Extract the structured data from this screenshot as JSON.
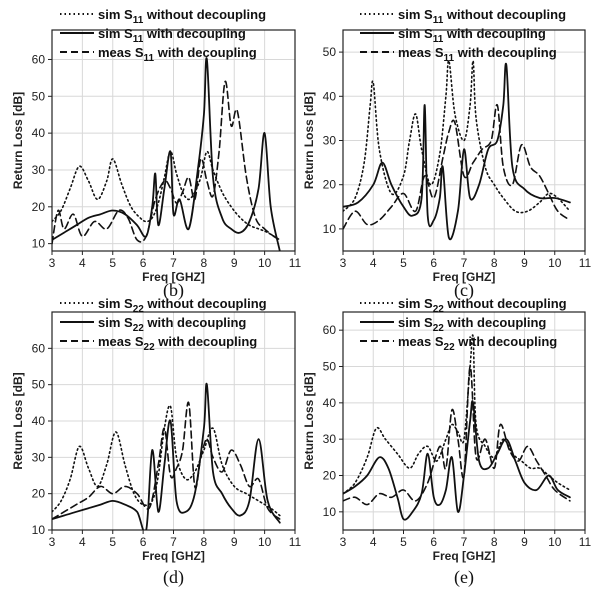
{
  "figure_title": "",
  "chart_data": [
    {
      "type": "line",
      "caption": "(b)",
      "xlabel": "Freq [GHZ]",
      "ylabel": "Return Loss [dB]",
      "xlim": [
        3,
        11
      ],
      "ylim": [
        8,
        68
      ],
      "xticks": [
        3,
        4,
        5,
        6,
        7,
        8,
        9,
        10,
        11
      ],
      "yticks": [
        10,
        20,
        30,
        40,
        50,
        60
      ],
      "legend_position": "top",
      "series": [
        {
          "name": "sim S11 without decoupling",
          "label_base": "sim S",
          "label_sub": "11",
          "label_rest": " without decoupling",
          "style": "dotted",
          "x": [
            3.0,
            3.3,
            3.6,
            3.9,
            4.2,
            4.5,
            4.8,
            5.0,
            5.3,
            5.6,
            5.9,
            6.1,
            6.3,
            6.5,
            6.7,
            6.9,
            7.1,
            7.3,
            7.5,
            7.7,
            7.9,
            8.1,
            8.3,
            8.6,
            8.9,
            9.2,
            9.5,
            9.8,
            10.1,
            10.5
          ],
          "y": [
            16,
            19,
            25,
            31,
            27,
            22,
            27,
            33,
            26,
            20,
            17,
            16,
            17,
            21,
            28,
            35,
            29,
            24,
            22,
            24,
            28,
            35,
            30,
            24,
            20,
            17,
            15,
            14,
            13,
            11
          ]
        },
        {
          "name": "sim S11 with decoupling",
          "label_base": "sim S",
          "label_sub": "11",
          "label_rest": " with decoupling",
          "style": "solid",
          "x": [
            3.0,
            3.4,
            3.8,
            4.2,
            4.6,
            5.0,
            5.4,
            5.8,
            6.1,
            6.3,
            6.4,
            6.5,
            6.7,
            6.9,
            7.0,
            7.2,
            7.5,
            7.8,
            8.0,
            8.1,
            8.3,
            8.6,
            8.9,
            9.2,
            9.5,
            9.8,
            10.0,
            10.2,
            10.5
          ],
          "y": [
            11,
            13,
            15,
            17,
            18,
            19,
            18,
            15,
            12,
            20,
            29,
            15,
            25,
            35,
            18,
            22,
            14,
            30,
            45,
            60,
            28,
            17,
            14,
            13,
            16,
            25,
            40,
            20,
            8
          ]
        },
        {
          "name": "meas S11 with decoupling",
          "label_base": "meas S",
          "label_sub": "11",
          "label_rest": " with decoupling",
          "style": "dashed",
          "x": [
            3.0,
            3.2,
            3.4,
            3.7,
            4.0,
            4.4,
            4.8,
            5.2,
            5.5,
            5.8,
            6.1,
            6.4,
            6.7,
            6.9,
            7.1,
            7.3,
            7.5,
            7.7,
            7.9,
            8.1,
            8.3,
            8.5,
            8.7,
            8.9,
            9.1,
            9.4,
            9.7,
            10.0,
            10.3,
            10.5
          ],
          "y": [
            10,
            19,
            14,
            18,
            12,
            16,
            14,
            19,
            17,
            11,
            12,
            22,
            27,
            25,
            21,
            24,
            28,
            22,
            33,
            27,
            23,
            35,
            54,
            42,
            46,
            28,
            17,
            14,
            12,
            11
          ]
        }
      ]
    },
    {
      "type": "line",
      "caption": "(c)",
      "xlabel": "Freq [GHZ]",
      "ylabel": "Return Loss [dB]",
      "xlim": [
        3,
        11
      ],
      "ylim": [
        5,
        55
      ],
      "xticks": [
        3,
        4,
        5,
        6,
        7,
        8,
        9,
        10,
        11
      ],
      "yticks": [
        10,
        20,
        30,
        40,
        50
      ],
      "legend_position": "top",
      "series": [
        {
          "name": "sim S11 without decoupling",
          "label_base": "sim S",
          "label_sub": "11",
          "label_rest": " without decoupling",
          "style": "dotted",
          "x": [
            3.0,
            3.4,
            3.7,
            3.9,
            4.0,
            4.2,
            4.6,
            5.0,
            5.2,
            5.4,
            5.6,
            5.9,
            6.2,
            6.4,
            6.5,
            6.7,
            7.0,
            7.2,
            7.3,
            7.4,
            7.7,
            8.0,
            8.3,
            8.7,
            9.1,
            9.5,
            9.8,
            10.1,
            10.5
          ],
          "y": [
            14,
            17,
            25,
            38,
            43,
            28,
            18,
            22,
            30,
            36,
            28,
            20,
            27,
            40,
            48,
            36,
            30,
            38,
            48,
            35,
            24,
            20,
            17,
            14,
            14,
            16,
            18,
            17,
            14
          ]
        },
        {
          "name": "sim S11 with decoupling",
          "label_base": "sim S",
          "label_sub": "11",
          "label_rest": " with decoupling",
          "style": "solid",
          "x": [
            3.0,
            3.5,
            4.0,
            4.3,
            4.6,
            5.0,
            5.3,
            5.6,
            5.7,
            5.8,
            6.0,
            6.2,
            6.3,
            6.5,
            6.8,
            7.0,
            7.2,
            7.5,
            7.8,
            8.1,
            8.3,
            8.4,
            8.6,
            9.0,
            9.5,
            10.0,
            10.5
          ],
          "y": [
            15,
            16,
            20,
            25,
            20,
            15,
            13,
            17,
            38,
            13,
            12,
            17,
            24,
            8,
            14,
            28,
            17,
            20,
            28,
            30,
            38,
            47,
            24,
            19,
            17,
            17,
            16
          ]
        },
        {
          "name": "meas S11 with decoupling",
          "label_base": "meas S",
          "label_sub": "11",
          "label_rest": " with decoupling",
          "style": "dashed",
          "x": [
            3.0,
            3.4,
            3.8,
            4.2,
            4.6,
            5.0,
            5.4,
            5.7,
            6.0,
            6.3,
            6.5,
            6.7,
            7.0,
            7.3,
            7.6,
            7.9,
            8.1,
            8.3,
            8.6,
            8.9,
            9.2,
            9.5,
            9.8,
            10.1,
            10.5
          ],
          "y": [
            10,
            14,
            11,
            12,
            15,
            18,
            14,
            22,
            17,
            26,
            32,
            34,
            22,
            25,
            28,
            30,
            38,
            24,
            20,
            29,
            24,
            22,
            18,
            14,
            12
          ]
        }
      ]
    },
    {
      "type": "line",
      "caption": "(d)",
      "xlabel": "Freq [GHZ]",
      "ylabel": "Return Loss [dB]",
      "xlim": [
        3,
        11
      ],
      "ylim": [
        10,
        70
      ],
      "xticks": [
        3,
        4,
        5,
        6,
        7,
        8,
        9,
        10,
        11
      ],
      "yticks": [
        10,
        20,
        30,
        40,
        50,
        60
      ],
      "legend_position": "top",
      "series": [
        {
          "name": "sim S22 without decoupling",
          "label_base": "sim S",
          "label_sub": "22",
          "label_rest": " without decoupling",
          "style": "dotted",
          "x": [
            3.0,
            3.3,
            3.6,
            3.9,
            4.2,
            4.5,
            4.8,
            5.1,
            5.4,
            5.7,
            6.0,
            6.3,
            6.5,
            6.7,
            6.9,
            7.1,
            7.4,
            7.7,
            8.0,
            8.3,
            8.6,
            9.0,
            9.4,
            9.8,
            10.2,
            10.5
          ],
          "y": [
            15,
            18,
            24,
            33,
            27,
            22,
            28,
            37,
            28,
            20,
            17,
            18,
            25,
            38,
            44,
            30,
            24,
            26,
            32,
            38,
            28,
            22,
            20,
            18,
            16,
            14
          ]
        },
        {
          "name": "sim S22 with decoupling",
          "label_base": "sim S",
          "label_sub": "22",
          "label_rest": " with decoupling",
          "style": "solid",
          "x": [
            3.0,
            3.4,
            3.8,
            4.2,
            4.6,
            5.0,
            5.4,
            5.8,
            6.1,
            6.3,
            6.5,
            6.7,
            6.9,
            7.1,
            7.4,
            7.7,
            8.0,
            8.1,
            8.3,
            8.6,
            8.9,
            9.2,
            9.5,
            9.8,
            10.1,
            10.5
          ],
          "y": [
            13,
            14,
            15,
            16,
            17,
            18,
            17,
            15,
            10,
            32,
            15,
            28,
            40,
            18,
            15,
            20,
            38,
            50,
            26,
            20,
            16,
            14,
            18,
            35,
            18,
            12
          ]
        },
        {
          "name": "meas S22 with decoupling",
          "label_base": "meas S",
          "label_sub": "22",
          "label_rest": " with decoupling",
          "style": "dashed",
          "x": [
            3.0,
            3.4,
            3.8,
            4.2,
            4.6,
            5.0,
            5.4,
            5.8,
            6.2,
            6.5,
            6.7,
            6.9,
            7.1,
            7.3,
            7.5,
            7.7,
            7.9,
            8.1,
            8.3,
            8.6,
            8.9,
            9.2,
            9.5,
            9.8,
            10.1,
            10.5
          ],
          "y": [
            13,
            15,
            17,
            19,
            22,
            20,
            22,
            20,
            16,
            28,
            38,
            25,
            27,
            32,
            45,
            22,
            30,
            35,
            30,
            26,
            32,
            28,
            22,
            24,
            16,
            13
          ]
        }
      ]
    },
    {
      "type": "line",
      "caption": "(e)",
      "xlabel": "Freq [GHZ]",
      "ylabel": "Return Loss [dB]",
      "xlim": [
        3,
        11
      ],
      "ylim": [
        5,
        65
      ],
      "xticks": [
        3,
        4,
        5,
        6,
        7,
        8,
        9,
        10,
        11
      ],
      "yticks": [
        10,
        20,
        30,
        40,
        50,
        60
      ],
      "legend_position": "top",
      "series": [
        {
          "name": "sim S22 without decoupling",
          "label_base": "sim S",
          "label_sub": "22",
          "label_rest": " without decoupling",
          "style": "dotted",
          "x": [
            3.0,
            3.4,
            3.8,
            4.1,
            4.4,
            4.8,
            5.2,
            5.5,
            5.8,
            6.1,
            6.4,
            6.6,
            6.8,
            7.0,
            7.2,
            7.3,
            7.4,
            7.7,
            8.0,
            8.3,
            8.6,
            8.9,
            9.2,
            9.5,
            9.8,
            10.1,
            10.5
          ],
          "y": [
            15,
            18,
            25,
            33,
            30,
            26,
            22,
            26,
            28,
            24,
            30,
            34,
            32,
            30,
            50,
            58,
            34,
            28,
            25,
            30,
            26,
            24,
            22,
            22,
            20,
            18,
            16
          ]
        },
        {
          "name": "sim S22 with decoupling",
          "label_base": "sim S",
          "label_sub": "22",
          "label_rest": " with decoupling",
          "style": "solid",
          "x": [
            3.0,
            3.4,
            3.8,
            4.2,
            4.5,
            4.8,
            5.0,
            5.3,
            5.6,
            5.8,
            6.0,
            6.2,
            6.4,
            6.6,
            6.8,
            7.0,
            7.2,
            7.3,
            7.5,
            7.8,
            8.1,
            8.4,
            8.7,
            9.0,
            9.4,
            9.8,
            10.1,
            10.5
          ],
          "y": [
            15,
            17,
            20,
            25,
            22,
            14,
            8,
            10,
            15,
            26,
            14,
            12,
            16,
            25,
            10,
            20,
            35,
            40,
            24,
            22,
            26,
            30,
            24,
            18,
            16,
            20,
            16,
            14
          ]
        },
        {
          "name": "meas S22 with decoupling",
          "label_base": "meas S",
          "label_sub": "22",
          "label_rest": " with decoupling",
          "style": "dashed",
          "x": [
            3.0,
            3.4,
            3.8,
            4.2,
            4.6,
            5.0,
            5.4,
            5.8,
            6.2,
            6.4,
            6.6,
            6.8,
            7.0,
            7.2,
            7.4,
            7.7,
            8.0,
            8.2,
            8.5,
            8.8,
            9.1,
            9.4,
            9.7,
            10.0,
            10.5
          ],
          "y": [
            13,
            14,
            12,
            15,
            14,
            16,
            13,
            18,
            28,
            22,
            38,
            30,
            20,
            50,
            25,
            30,
            22,
            34,
            27,
            24,
            28,
            24,
            20,
            16,
            13
          ]
        }
      ]
    }
  ]
}
